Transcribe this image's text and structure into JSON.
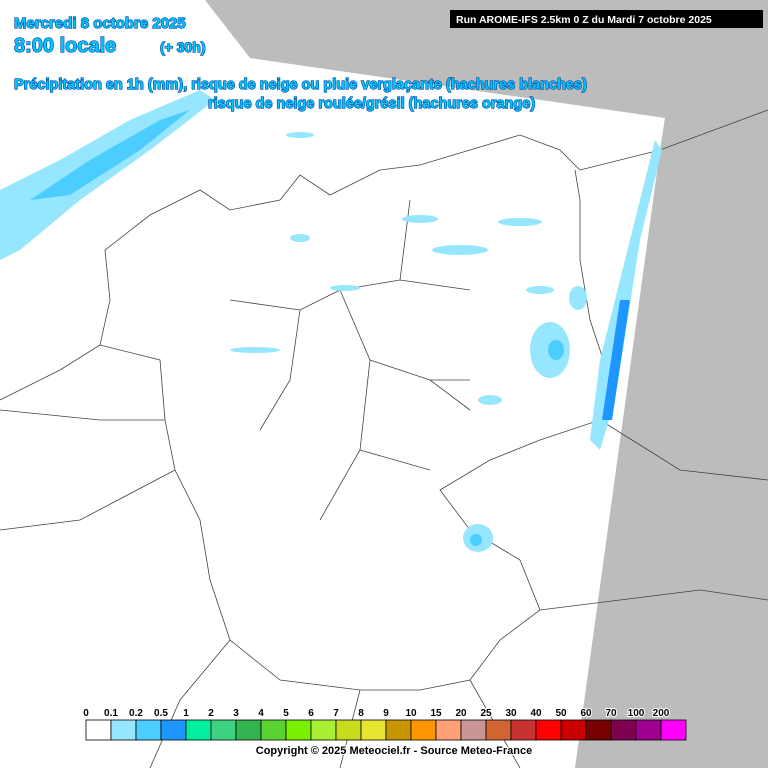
{
  "header": {
    "date": "Mercredi 8 octobre 2025",
    "time": "8:00 locale",
    "lead": "(+ 30h)",
    "title_lines": [
      "Précipitation en 1h (mm), risque de neige ou pluie verglaçante (hachures blanches)",
      "risque de neige roulée/grésil (hachures orange)"
    ]
  },
  "run": "Run AROME-IFS 2.5km 0 Z du Mardi 7 octobre 2025",
  "legend": {
    "labels": [
      "0",
      "0.1",
      "0.2",
      "0.5",
      "1",
      "2",
      "3",
      "4",
      "5",
      "6",
      "7",
      "8",
      "9",
      "10",
      "15",
      "20",
      "25",
      "30",
      "40",
      "50",
      "60",
      "70",
      "100",
      "200"
    ],
    "colors": [
      "#ffffff",
      "#96e6ff",
      "#4bcdff",
      "#1e96ff",
      "#00f0a0",
      "#3cd282",
      "#32b450",
      "#5ad232",
      "#78f000",
      "#aaf032",
      "#c8dc1e",
      "#e6e632",
      "#c89600",
      "#ff9600",
      "#ffa078",
      "#c89696",
      "#d26432",
      "#c83232",
      "#ff0000",
      "#c80000",
      "#780000",
      "#800050",
      "#a00090",
      "#ff00ff"
    ]
  },
  "copyright": "Copyright © 2025 Meteociel.fr - Source Meteo-France"
}
